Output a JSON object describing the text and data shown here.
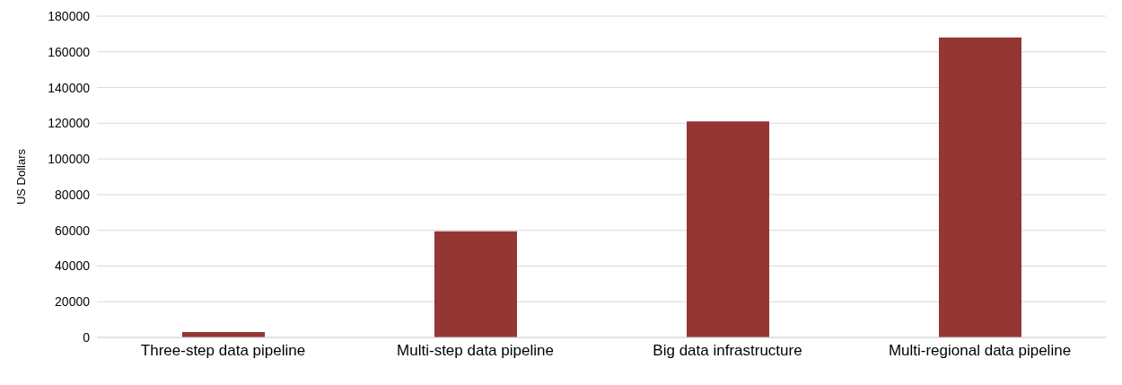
{
  "chart_data": {
    "type": "bar",
    "ylabel": "US Dollars",
    "categories": [
      "Three-step data pipeline",
      "Multi-step data pipeline",
      "Big data infrastructure",
      "Multi-regional data pipeline"
    ],
    "values": [
      3000,
      59500,
      121000,
      168000
    ],
    "color": "#943634",
    "ylim": [
      0,
      180000
    ],
    "yticks": [
      0,
      20000,
      40000,
      60000,
      80000,
      100000,
      120000,
      140000,
      160000,
      180000
    ],
    "grid": "y"
  }
}
